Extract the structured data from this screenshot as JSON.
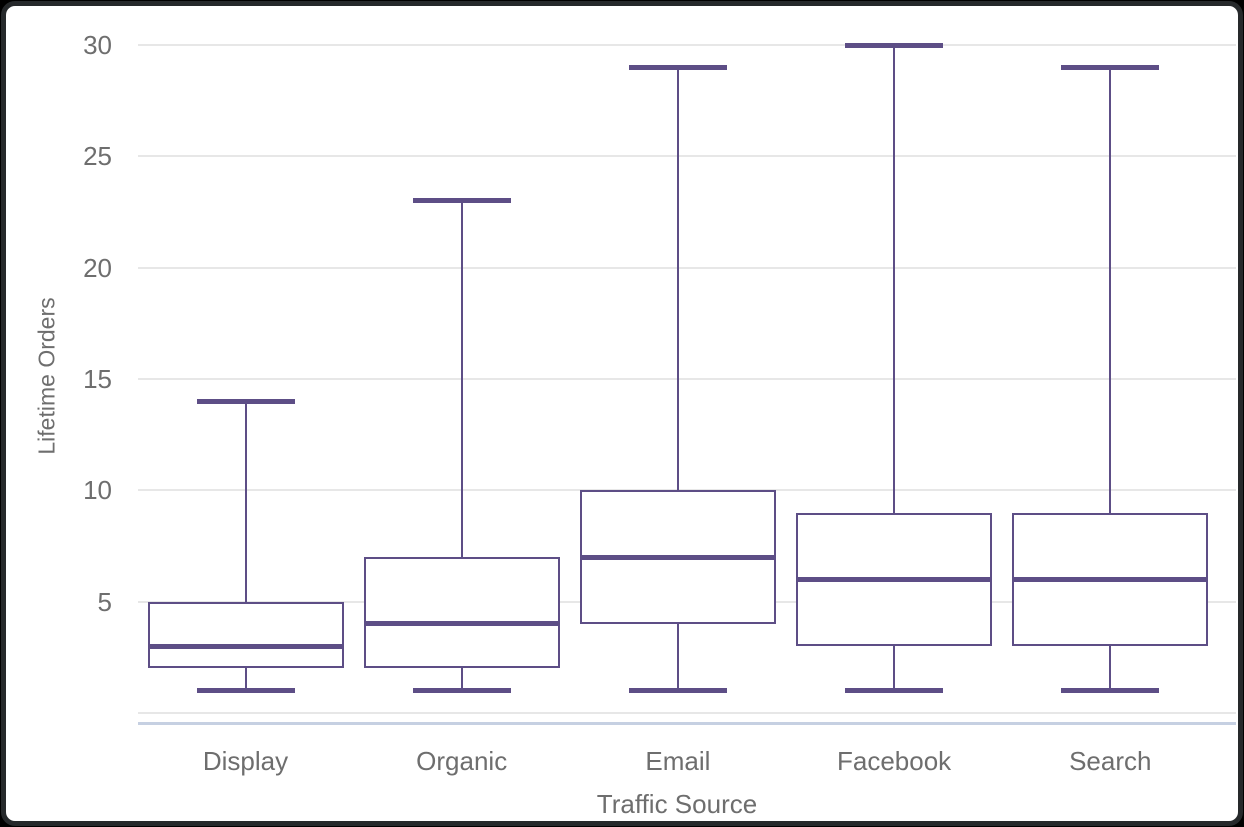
{
  "chart_data": {
    "type": "boxplot",
    "title": "",
    "xlabel": "Traffic Source",
    "ylabel": "Lifetime Orders",
    "categories": [
      "Display",
      "Organic",
      "Email",
      "Facebook",
      "Search"
    ],
    "series": [
      {
        "name": "Display",
        "min": 1,
        "q1": 2,
        "median": 3,
        "q3": 5,
        "max": 14
      },
      {
        "name": "Organic",
        "min": 1,
        "q1": 2,
        "median": 4,
        "q3": 7,
        "max": 23
      },
      {
        "name": "Email",
        "min": 1,
        "q1": 4,
        "median": 7,
        "q3": 10,
        "max": 29
      },
      {
        "name": "Facebook",
        "min": 1,
        "q1": 3,
        "median": 6,
        "q3": 9,
        "max": 30
      },
      {
        "name": "Search",
        "min": 1,
        "q1": 3,
        "median": 6,
        "q3": 9,
        "max": 29
      }
    ],
    "yticks": [
      30,
      25,
      20,
      15,
      10,
      5
    ],
    "ylim": [
      0,
      31
    ],
    "grid": true,
    "baseline_value": 0,
    "legend": "none",
    "colors": {
      "box": "#5d4e86",
      "gridline": "#e7e7e7",
      "axis_line": "#c6d0e2",
      "label": "#6e6e6e",
      "background": "#ffffff",
      "frame": "#26292b"
    }
  }
}
